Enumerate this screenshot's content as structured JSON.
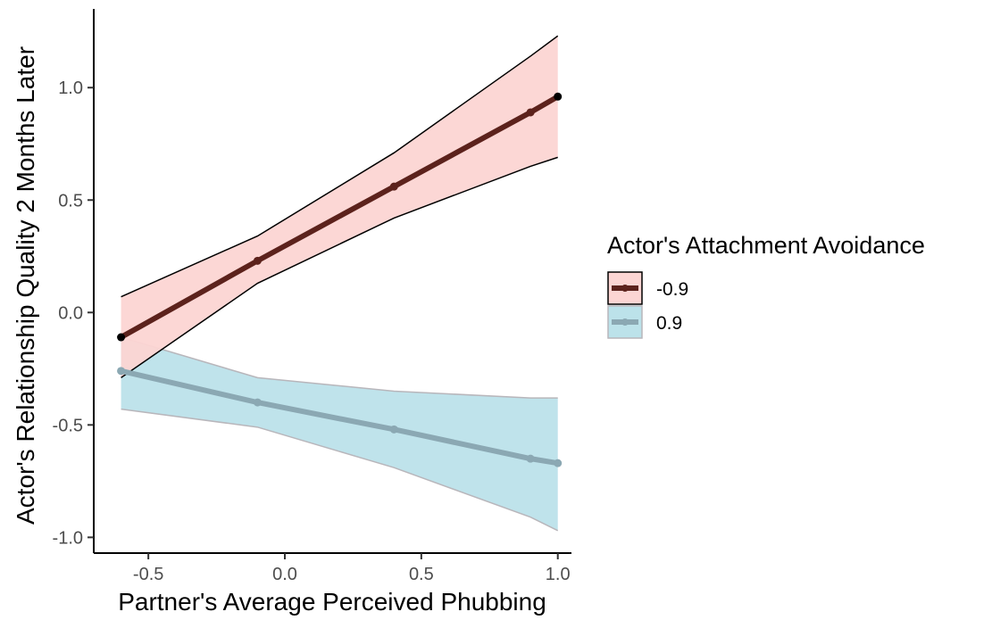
{
  "chart_data": {
    "type": "line",
    "xlabel": "Partner's Average Perceived Phubbing",
    "ylabel": "Actor's Relationship Quality 2 Months Later",
    "xlim": [
      -0.7,
      1.05
    ],
    "ylim": [
      -1.07,
      1.35
    ],
    "x_ticks": [
      -0.5,
      0.0,
      0.5,
      1.0
    ],
    "x_tick_labels": [
      "-0.5",
      "0.0",
      "0.5",
      "1.0"
    ],
    "y_ticks": [
      -1.0,
      -0.5,
      0.0,
      0.5,
      1.0
    ],
    "y_tick_labels": [
      "-1.0",
      "-0.5",
      "0.0",
      "0.5",
      "1.0"
    ],
    "grid": false,
    "legend": {
      "title": "Actor's Attachment Avoidance",
      "placement": "right"
    },
    "series": [
      {
        "name": "-0.9",
        "line_color": "#5c221c",
        "fill_color": "#fcd5d3",
        "band_edge_color": "#000000",
        "x": [
          -0.6,
          -0.1,
          0.4,
          0.9,
          1.0
        ],
        "y": [
          -0.11,
          0.23,
          0.56,
          0.89,
          0.96
        ],
        "lower": [
          -0.29,
          0.13,
          0.42,
          0.65,
          0.69
        ],
        "upper": [
          0.07,
          0.34,
          0.71,
          1.14,
          1.23
        ]
      },
      {
        "name": "0.9",
        "line_color": "#8ba8b3",
        "fill_color": "#bce2ea",
        "band_edge_color": "#b8b6bb",
        "x": [
          -0.6,
          -0.1,
          0.4,
          0.9,
          1.0
        ],
        "y": [
          -0.26,
          -0.4,
          -0.52,
          -0.65,
          -0.67
        ],
        "lower": [
          -0.43,
          -0.51,
          -0.69,
          -0.91,
          -0.97
        ],
        "upper": [
          -0.11,
          -0.29,
          -0.35,
          -0.38,
          -0.38
        ]
      }
    ]
  }
}
